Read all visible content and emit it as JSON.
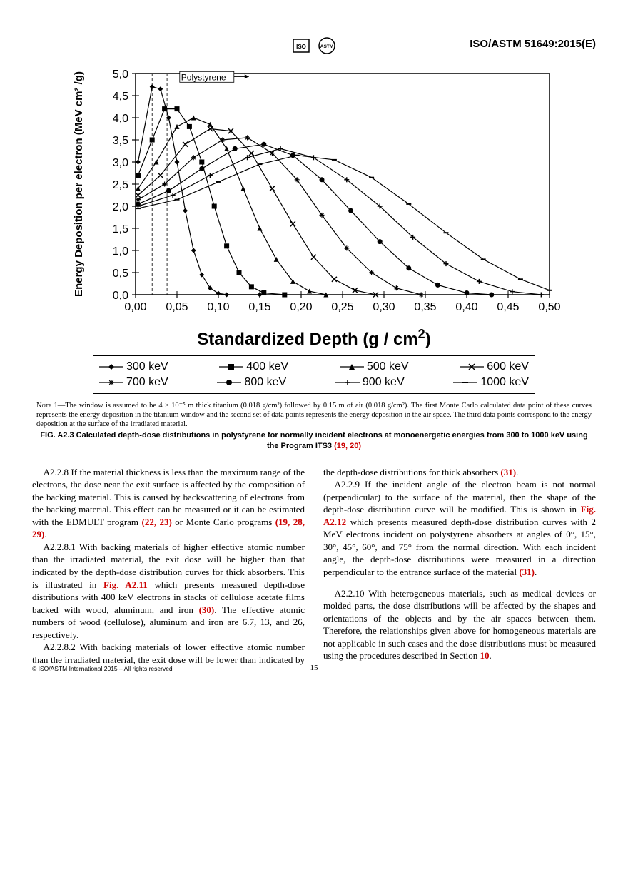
{
  "header": {
    "doc_id": "ISO/ASTM 51649:2015(E)"
  },
  "chart": {
    "type": "line",
    "material_label": "Polystyrene",
    "xlabel": "Standardized Depth (g / cm²)",
    "ylabel": "Energy Deposition per electron (MeV cm² /g)",
    "title": "Standardized Depth (g / cm",
    "title_sup": "2",
    "title_tail": ")",
    "xlim": [
      0.0,
      0.5
    ],
    "ylim": [
      0.0,
      5.0
    ],
    "xtick_step": 0.05,
    "ytick_step": 0.5,
    "xtick_labels": [
      "0,00",
      "0,05",
      "0,10",
      "0,15",
      "0,20",
      "0,25",
      "0,30",
      "0,35",
      "0,40",
      "0,45",
      "0,50"
    ],
    "ytick_labels": [
      "0,0",
      "0,5",
      "1,0",
      "1,5",
      "2,0",
      "2,5",
      "3,0",
      "3,5",
      "4,0",
      "4,5",
      "5,0"
    ],
    "label_fontsize": 16,
    "tick_fontsize": 16,
    "line_color": "#000000",
    "background_color": "#ffffff",
    "grid": false,
    "series": [
      {
        "name": "300 keV",
        "marker": "diamond",
        "data": [
          [
            0.003,
            3.0
          ],
          [
            0.02,
            4.7
          ],
          [
            0.03,
            4.65
          ],
          [
            0.04,
            4.0
          ],
          [
            0.05,
            3.0
          ],
          [
            0.06,
            1.9
          ],
          [
            0.07,
            1.0
          ],
          [
            0.08,
            0.45
          ],
          [
            0.09,
            0.15
          ],
          [
            0.1,
            0.03
          ],
          [
            0.11,
            0.0
          ],
          [
            0.15,
            0.0
          ]
        ]
      },
      {
        "name": "400 keV",
        "marker": "square",
        "data": [
          [
            0.003,
            2.7
          ],
          [
            0.02,
            3.5
          ],
          [
            0.035,
            4.2
          ],
          [
            0.05,
            4.2
          ],
          [
            0.065,
            3.8
          ],
          [
            0.08,
            3.0
          ],
          [
            0.095,
            2.0
          ],
          [
            0.11,
            1.1
          ],
          [
            0.125,
            0.5
          ],
          [
            0.14,
            0.18
          ],
          [
            0.155,
            0.04
          ],
          [
            0.18,
            0.0
          ]
        ]
      },
      {
        "name": "500 keV",
        "marker": "triangle",
        "data": [
          [
            0.003,
            2.4
          ],
          [
            0.025,
            3.0
          ],
          [
            0.05,
            3.8
          ],
          [
            0.07,
            4.0
          ],
          [
            0.09,
            3.85
          ],
          [
            0.11,
            3.3
          ],
          [
            0.13,
            2.4
          ],
          [
            0.15,
            1.5
          ],
          [
            0.17,
            0.8
          ],
          [
            0.19,
            0.3
          ],
          [
            0.21,
            0.08
          ],
          [
            0.23,
            0.0
          ]
        ]
      },
      {
        "name": "600 keV",
        "marker": "x",
        "data": [
          [
            0.003,
            2.25
          ],
          [
            0.03,
            2.7
          ],
          [
            0.06,
            3.4
          ],
          [
            0.09,
            3.75
          ],
          [
            0.115,
            3.7
          ],
          [
            0.14,
            3.2
          ],
          [
            0.165,
            2.4
          ],
          [
            0.19,
            1.6
          ],
          [
            0.215,
            0.85
          ],
          [
            0.24,
            0.35
          ],
          [
            0.265,
            0.1
          ],
          [
            0.29,
            0.0
          ]
        ]
      },
      {
        "name": "700 keV",
        "marker": "asterisk",
        "data": [
          [
            0.003,
            2.15
          ],
          [
            0.035,
            2.5
          ],
          [
            0.07,
            3.1
          ],
          [
            0.105,
            3.5
          ],
          [
            0.135,
            3.55
          ],
          [
            0.165,
            3.2
          ],
          [
            0.195,
            2.6
          ],
          [
            0.225,
            1.8
          ],
          [
            0.255,
            1.05
          ],
          [
            0.285,
            0.5
          ],
          [
            0.315,
            0.15
          ],
          [
            0.345,
            0.0
          ]
        ]
      },
      {
        "name": "800 keV",
        "marker": "circle",
        "data": [
          [
            0.003,
            2.05
          ],
          [
            0.04,
            2.35
          ],
          [
            0.08,
            2.85
          ],
          [
            0.12,
            3.3
          ],
          [
            0.155,
            3.4
          ],
          [
            0.19,
            3.15
          ],
          [
            0.225,
            2.6
          ],
          [
            0.26,
            1.9
          ],
          [
            0.295,
            1.2
          ],
          [
            0.33,
            0.6
          ],
          [
            0.365,
            0.22
          ],
          [
            0.4,
            0.04
          ],
          [
            0.43,
            0.0
          ]
        ]
      },
      {
        "name": "900 keV",
        "marker": "plus",
        "data": [
          [
            0.003,
            2.0
          ],
          [
            0.045,
            2.25
          ],
          [
            0.09,
            2.7
          ],
          [
            0.135,
            3.1
          ],
          [
            0.175,
            3.3
          ],
          [
            0.215,
            3.1
          ],
          [
            0.255,
            2.6
          ],
          [
            0.295,
            2.0
          ],
          [
            0.335,
            1.3
          ],
          [
            0.375,
            0.7
          ],
          [
            0.415,
            0.3
          ],
          [
            0.455,
            0.07
          ],
          [
            0.49,
            0.0
          ]
        ]
      },
      {
        "name": "1000 keV",
        "marker": "dash",
        "data": [
          [
            0.003,
            1.95
          ],
          [
            0.05,
            2.15
          ],
          [
            0.1,
            2.55
          ],
          [
            0.15,
            2.95
          ],
          [
            0.195,
            3.15
          ],
          [
            0.24,
            3.05
          ],
          [
            0.285,
            2.65
          ],
          [
            0.33,
            2.05
          ],
          [
            0.375,
            1.4
          ],
          [
            0.42,
            0.8
          ],
          [
            0.465,
            0.35
          ],
          [
            0.5,
            0.1
          ]
        ]
      }
    ],
    "legend": [
      {
        "label": "300 keV",
        "marker": "diamond"
      },
      {
        "label": "400 keV",
        "marker": "square"
      },
      {
        "label": "500 keV",
        "marker": "triangle"
      },
      {
        "label": "600 keV",
        "marker": "x"
      },
      {
        "label": "700 keV",
        "marker": "asterisk"
      },
      {
        "label": "800 keV",
        "marker": "circle"
      },
      {
        "label": "900 keV",
        "marker": "plus"
      },
      {
        "label": "1000 keV",
        "marker": "dash"
      }
    ]
  },
  "note": {
    "lead": "Note 1—",
    "text": "The window is assumed to be 4 × 10⁻⁵ m thick titanium (0.018 g/cm²) followed by 0.15 m of air (0.018 g/cm²). The first Monte Carlo calculated data point of these curves represents the energy deposition in the titanium window and the second set of data points represents the energy deposition in the air space. The third data points correspond to the energy deposition at the surface of the irradiated material."
  },
  "caption": {
    "prefix": "FIG. A2.3  Calculated depth-dose distributions in polystyrene for normally incident electrons at monoenergetic energies from 300 to 1000 keV using the Program ITS3 ",
    "refs": "(19, 20)"
  },
  "paragraphs": {
    "p1_lead": "A2.2.8 ",
    "p1": "If the material thickness is less than the maximum range of the electrons, the dose near the exit surface is affected by the composition of the backing material. This is caused by backscattering of electrons from the backing material. This effect can be measured or it can be estimated with the EDMULT program ",
    "p1_ref1": "(22, 23)",
    "p1_mid": " or Monte Carlo programs ",
    "p1_ref2": "(19, 28, 29)",
    "p1_tail": ".",
    "p2_lead": "A2.2.8.1 ",
    "p2": "With backing materials of higher effective atomic number than the irradiated material, the exit dose will be higher than that indicated by the depth-dose distribution curves for thick absorbers. This is illustrated in ",
    "p2_fig": "Fig. A2.11",
    "p2_mid": " which presents measured depth-dose distributions with 400 keV electrons in stacks of cellulose acetate films backed with wood, aluminum, and iron ",
    "p2_ref": "(30)",
    "p2_tail": ". The effective atomic numbers of wood (cellulose), aluminum and iron are 6.7, 13, and 26, respectively.",
    "p3_lead": "A2.2.8.2 ",
    "p3": "With backing materials of lower effective atomic number than the irradiated material, the exit dose will be lower than indicated by the depth-dose distributions for thick absorbers ",
    "p3_ref": "(31)",
    "p3_tail": ".",
    "p4_lead": "A2.2.9 ",
    "p4": "If the incident angle of the electron beam is not normal (perpendicular) to the surface of the material, then the shape of the depth-dose distribution curve will be modified. This is shown in ",
    "p4_fig": "Fig. A2.12",
    "p4_mid": " which presents measured depth-dose distribution curves with 2 MeV electrons incident on polystyrene absorbers at angles of 0°, 15°, 30°, 45°, 60°, and 75° from the normal direction. With each incident angle, the depth-dose distributions were measured in a direction perpendicular to the entrance surface of the material ",
    "p4_ref": "(31)",
    "p4_tail": ".",
    "p5_lead": "A2.2.10 ",
    "p5": "With heterogeneous materials, such as medical devices or molded parts, the dose distributions will be affected by the shapes and orientations of the objects and by the air spaces between them. Therefore, the relationships given above for homogeneous materials are not applicable in such cases and the dose distributions must be measured using the procedures described in Section ",
    "p5_ref": "10",
    "p5_tail": "."
  },
  "footer": {
    "copyright": "© ISO/ASTM International 2015 – All rights reserved",
    "page": "15"
  }
}
